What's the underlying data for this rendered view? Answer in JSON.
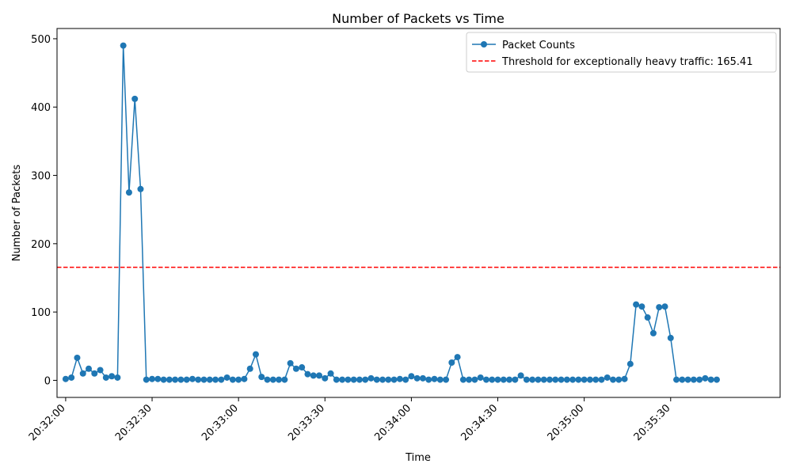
{
  "chart_data": {
    "type": "line",
    "title": "Number of Packets vs Time",
    "xlabel": "Time",
    "ylabel": "Number of Packets",
    "ylim": [
      -25,
      515
    ],
    "xlim": [
      "20:31:57",
      "20:36:08"
    ],
    "x_ticks": [
      "20:32:00",
      "20:32:30",
      "20:33:00",
      "20:33:30",
      "20:34:00",
      "20:34:30",
      "20:35:00",
      "20:35:30"
    ],
    "y_ticks": [
      0,
      100,
      200,
      300,
      400,
      500
    ],
    "grid": false,
    "legend_position": "top-right",
    "series": [
      {
        "name": "Packet Counts",
        "color": "#1f77b4",
        "marker": "circle",
        "line_style": "solid",
        "points": [
          [
            "20:32:00",
            2
          ],
          [
            "20:32:02",
            4
          ],
          [
            "20:32:04",
            33
          ],
          [
            "20:32:06",
            10
          ],
          [
            "20:32:08",
            17
          ],
          [
            "20:32:10",
            10
          ],
          [
            "20:32:12",
            15
          ],
          [
            "20:32:14",
            4
          ],
          [
            "20:32:16",
            6
          ],
          [
            "20:32:18",
            4
          ],
          [
            "20:32:20",
            490
          ],
          [
            "20:32:22",
            275
          ],
          [
            "20:32:24",
            412
          ],
          [
            "20:32:26",
            280
          ],
          [
            "20:32:28",
            1
          ],
          [
            "20:32:30",
            2
          ],
          [
            "20:32:32",
            2
          ],
          [
            "20:32:34",
            1
          ],
          [
            "20:32:36",
            1
          ],
          [
            "20:32:38",
            1
          ],
          [
            "20:32:40",
            1
          ],
          [
            "20:32:42",
            1
          ],
          [
            "20:32:44",
            2
          ],
          [
            "20:32:46",
            1
          ],
          [
            "20:32:48",
            1
          ],
          [
            "20:32:50",
            1
          ],
          [
            "20:32:52",
            1
          ],
          [
            "20:32:54",
            1
          ],
          [
            "20:32:56",
            4
          ],
          [
            "20:32:58",
            1
          ],
          [
            "20:33:00",
            1
          ],
          [
            "20:33:02",
            2
          ],
          [
            "20:33:04",
            17
          ],
          [
            "20:33:06",
            38
          ],
          [
            "20:33:08",
            5
          ],
          [
            "20:33:10",
            1
          ],
          [
            "20:33:12",
            1
          ],
          [
            "20:33:14",
            1
          ],
          [
            "20:33:16",
            1
          ],
          [
            "20:33:18",
            25
          ],
          [
            "20:33:20",
            17
          ],
          [
            "20:33:22",
            19
          ],
          [
            "20:33:24",
            9
          ],
          [
            "20:33:26",
            7
          ],
          [
            "20:33:28",
            7
          ],
          [
            "20:33:30",
            3
          ],
          [
            "20:33:32",
            10
          ],
          [
            "20:33:34",
            1
          ],
          [
            "20:33:36",
            1
          ],
          [
            "20:33:38",
            1
          ],
          [
            "20:33:40",
            1
          ],
          [
            "20:33:42",
            1
          ],
          [
            "20:33:44",
            1
          ],
          [
            "20:33:46",
            3
          ],
          [
            "20:33:48",
            1
          ],
          [
            "20:33:50",
            1
          ],
          [
            "20:33:52",
            1
          ],
          [
            "20:33:54",
            1
          ],
          [
            "20:33:56",
            2
          ],
          [
            "20:33:58",
            1
          ],
          [
            "20:34:00",
            6
          ],
          [
            "20:34:02",
            3
          ],
          [
            "20:34:04",
            3
          ],
          [
            "20:34:06",
            1
          ],
          [
            "20:34:08",
            2
          ],
          [
            "20:34:10",
            1
          ],
          [
            "20:34:12",
            1
          ],
          [
            "20:34:14",
            26
          ],
          [
            "20:34:16",
            34
          ],
          [
            "20:34:18",
            1
          ],
          [
            "20:34:20",
            1
          ],
          [
            "20:34:22",
            1
          ],
          [
            "20:34:24",
            4
          ],
          [
            "20:34:26",
            1
          ],
          [
            "20:34:28",
            1
          ],
          [
            "20:34:30",
            1
          ],
          [
            "20:34:32",
            1
          ],
          [
            "20:34:34",
            1
          ],
          [
            "20:34:36",
            1
          ],
          [
            "20:34:38",
            7
          ],
          [
            "20:34:40",
            1
          ],
          [
            "20:34:42",
            1
          ],
          [
            "20:34:44",
            1
          ],
          [
            "20:34:46",
            1
          ],
          [
            "20:34:48",
            1
          ],
          [
            "20:34:50",
            1
          ],
          [
            "20:34:52",
            1
          ],
          [
            "20:34:54",
            1
          ],
          [
            "20:34:56",
            1
          ],
          [
            "20:34:58",
            1
          ],
          [
            "20:35:00",
            1
          ],
          [
            "20:35:02",
            1
          ],
          [
            "20:35:04",
            1
          ],
          [
            "20:35:06",
            1
          ],
          [
            "20:35:08",
            4
          ],
          [
            "20:35:10",
            1
          ],
          [
            "20:35:12",
            1
          ],
          [
            "20:35:14",
            2
          ],
          [
            "20:35:16",
            24
          ],
          [
            "20:35:18",
            111
          ],
          [
            "20:35:20",
            108
          ],
          [
            "20:35:22",
            92
          ],
          [
            "20:35:24",
            69
          ],
          [
            "20:35:26",
            107
          ],
          [
            "20:35:28",
            108
          ],
          [
            "20:35:30",
            62
          ],
          [
            "20:35:32",
            1
          ],
          [
            "20:35:34",
            1
          ],
          [
            "20:35:36",
            1
          ],
          [
            "20:35:38",
            1
          ],
          [
            "20:35:40",
            1
          ],
          [
            "20:35:42",
            3
          ],
          [
            "20:35:44",
            1
          ],
          [
            "20:35:46",
            1
          ]
        ]
      }
    ],
    "threshold": {
      "name": "Threshold for exceptionally heavy traffic: 165.41",
      "value": 165.41,
      "color": "#ff0000",
      "line_style": "dashed"
    }
  }
}
